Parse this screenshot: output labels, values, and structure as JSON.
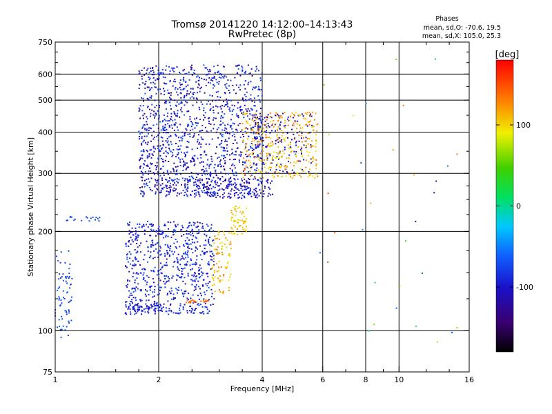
{
  "title_line1": "Tromsø 20141220 14:12:00–14:13:43",
  "title_line2": "RwPretec (8p)",
  "phases": {
    "title": "Phases",
    "line1": "mean, sd,O: -70.6, 19.5",
    "line2": "mean, sd,X: 105.0, 25.3"
  },
  "colorbar": {
    "unit": "[deg]",
    "range": [
      -180,
      180
    ],
    "ticks": [
      {
        "label": "100",
        "value": 100
      },
      {
        "label": "0",
        "value": 0
      },
      {
        "label": "-100",
        "value": -100
      }
    ]
  },
  "chart_data": {
    "type": "scatter",
    "xlabel": "Frequency [MHz]",
    "ylabel": "Stationary phase Virtual Height [km]",
    "x_scale": "log",
    "y_scale": "log",
    "xlim": [
      1,
      16
    ],
    "ylim": [
      75,
      750
    ],
    "grid": true,
    "x_ticks": [
      {
        "label": "1",
        "value": 1
      },
      {
        "label": "2",
        "value": 2
      },
      {
        "label": "4",
        "value": 4
      },
      {
        "label": "6",
        "value": 6
      },
      {
        "label": "8",
        "value": 8
      },
      {
        "label": "10",
        "value": 10
      },
      {
        "label": "16",
        "value": 16
      }
    ],
    "y_ticks": [
      {
        "label": "750",
        "value": 750
      },
      {
        "label": "600",
        "value": 600
      },
      {
        "label": "500",
        "value": 500
      },
      {
        "label": "400",
        "value": 400
      },
      {
        "label": "300",
        "value": 300
      },
      {
        "label": "200",
        "value": 200
      },
      {
        "label": "100",
        "value": 100
      },
      {
        "label": "75",
        "value": 75
      }
    ],
    "x_gridlines": [
      2,
      4,
      6,
      8,
      10
    ],
    "y_gridlines": [
      100,
      200,
      300,
      400,
      500,
      600
    ],
    "point_clusters": [
      {
        "name": "low-freq-echoes",
        "x": [
          1.0,
          1.12
        ],
        "y": [
          95,
          175
        ],
        "phase": [
          -85,
          -60
        ],
        "n": 70
      },
      {
        "name": "low-freq-line",
        "x": [
          1.02,
          1.35
        ],
        "y": [
          215,
          222
        ],
        "phase": [
          -80,
          -65
        ],
        "n": 18
      },
      {
        "name": "e-trace-band",
        "x": [
          1.6,
          2.9
        ],
        "y": [
          112,
          215
        ],
        "phase": [
          -115,
          -65
        ],
        "n": 700
      },
      {
        "name": "e-trace-edge",
        "x": [
          1.6,
          2.05
        ],
        "y": [
          114,
          120
        ],
        "phase": [
          -110,
          -80
        ],
        "n": 60
      },
      {
        "name": "f-layer-o-lower-edge",
        "x": [
          1.95,
          4.3
        ],
        "y": [
          252,
          290
        ],
        "phase": [
          -130,
          -85
        ],
        "n": 180
      },
      {
        "name": "f-layer-o-cloud",
        "x": [
          1.75,
          4.0
        ],
        "y": [
          255,
          640
        ],
        "phase": [
          -135,
          -60
        ],
        "n": 1300
      },
      {
        "name": "f-layer-o-high",
        "x": [
          3.8,
          5.6
        ],
        "y": [
          300,
          460
        ],
        "phase": [
          -130,
          -90
        ],
        "n": 160
      },
      {
        "name": "f-layer-x-trace",
        "x": [
          3.5,
          5.8
        ],
        "y": [
          290,
          460
        ],
        "phase": [
          85,
          140
        ],
        "n": 320
      },
      {
        "name": "x-low-cluster-1",
        "x": [
          2.85,
          3.25
        ],
        "y": [
          130,
          200
        ],
        "phase": [
          90,
          135
        ],
        "n": 90
      },
      {
        "name": "x-low-cluster-2",
        "x": [
          3.25,
          3.6
        ],
        "y": [
          195,
          240
        ],
        "phase": [
          85,
          120
        ],
        "n": 60
      },
      {
        "name": "x-bottom-line",
        "x": [
          2.4,
          2.85
        ],
        "y": [
          121,
          124
        ],
        "phase": [
          125,
          150
        ],
        "n": 22
      },
      {
        "name": "scattered-high-freq",
        "x": [
          5.8,
          15.5
        ],
        "y": [
          90,
          680
        ],
        "phase": [
          -120,
          160
        ],
        "n": 32
      }
    ]
  }
}
